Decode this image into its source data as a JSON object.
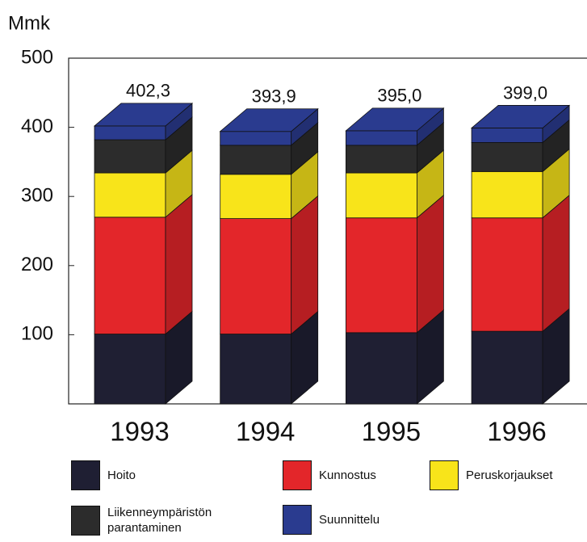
{
  "chart_data": {
    "type": "bar3d_stacked",
    "y_label": "Mmk",
    "categories": [
      "1993",
      "1994",
      "1995",
      "1996"
    ],
    "series": [
      {
        "name": "Hoito",
        "color": "#1f1f33",
        "values": [
          101,
          101,
          103,
          105
        ]
      },
      {
        "name": "Kunnostus",
        "color": "#e3262a",
        "values": [
          169,
          167,
          166,
          164
        ]
      },
      {
        "name": "Peruskorjaukset",
        "color": "#f8e41a",
        "values": [
          64,
          64,
          65,
          67
        ]
      },
      {
        "name": "Liikenneympäristön parantaminen",
        "color": "#2c2c2c",
        "values": [
          48,
          42,
          40,
          42
        ]
      },
      {
        "name": "Suunnittelu",
        "color": "#2a3b8f",
        "values": [
          20,
          20,
          21,
          21
        ]
      }
    ],
    "totals": [
      402.3,
      393.9,
      395.0,
      399.0
    ],
    "totals_labels": [
      "402,3",
      "393,9",
      "395,0",
      "399,0"
    ],
    "ylim": [
      0,
      500
    ],
    "yticks": [
      100,
      200,
      300,
      400,
      500
    ]
  }
}
